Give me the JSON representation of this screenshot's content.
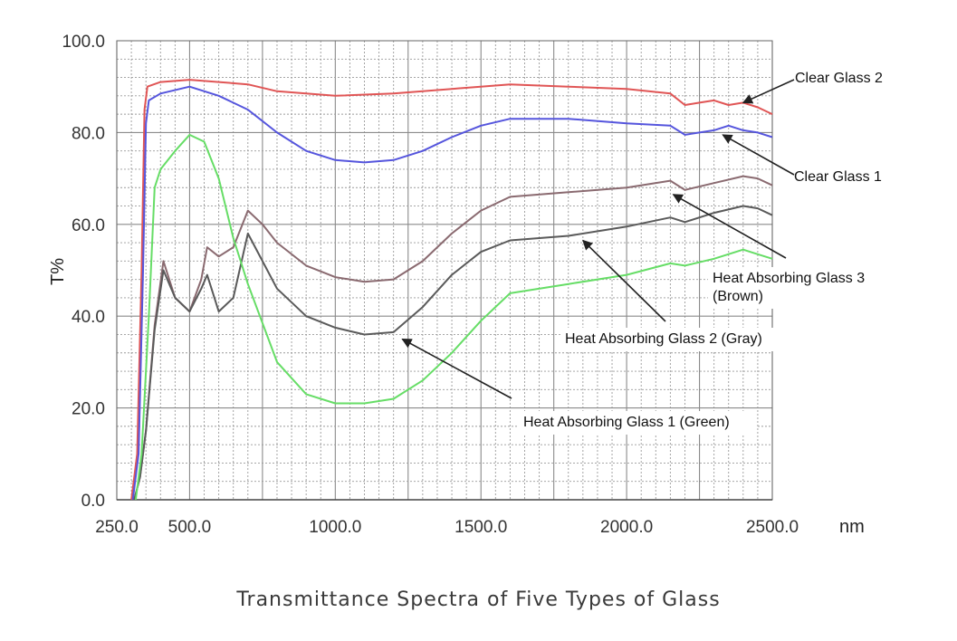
{
  "caption": "Transmittance Spectra of Five Types of Glass",
  "chart_data": {
    "type": "line",
    "title": "",
    "xlabel": "nm",
    "ylabel": "T%",
    "xlim": [
      250,
      2500
    ],
    "ylim": [
      0,
      100
    ],
    "grid": true,
    "x_ticks": [
      250,
      500,
      1000,
      1500,
      2000,
      2500
    ],
    "x_tick_labels": [
      "250.0",
      "500.0",
      "1000.0",
      "1500.0",
      "2000.0",
      "2500.0"
    ],
    "y_ticks": [
      0,
      20,
      40,
      60,
      80,
      100
    ],
    "y_tick_labels": [
      "0.0",
      "20.0",
      "40.0",
      "60.0",
      "80.0",
      "100.0"
    ],
    "series": [
      {
        "name": "Clear Glass 2",
        "color": "#e05555",
        "points": [
          [
            300,
            0
          ],
          [
            320,
            10
          ],
          [
            335,
            50
          ],
          [
            345,
            85
          ],
          [
            355,
            90
          ],
          [
            400,
            91
          ],
          [
            500,
            91.5
          ],
          [
            600,
            91
          ],
          [
            700,
            90.5
          ],
          [
            800,
            89
          ],
          [
            1000,
            88
          ],
          [
            1200,
            88.5
          ],
          [
            1400,
            89.5
          ],
          [
            1600,
            90.5
          ],
          [
            1800,
            90
          ],
          [
            2000,
            89.5
          ],
          [
            2150,
            88.5
          ],
          [
            2200,
            86
          ],
          [
            2250,
            86.5
          ],
          [
            2300,
            87
          ],
          [
            2350,
            86
          ],
          [
            2400,
            86.5
          ],
          [
            2450,
            85.5
          ],
          [
            2500,
            84
          ]
        ]
      },
      {
        "name": "Clear Glass 1",
        "color": "#5555dd",
        "points": [
          [
            305,
            0
          ],
          [
            325,
            10
          ],
          [
            340,
            50
          ],
          [
            350,
            82
          ],
          [
            360,
            87
          ],
          [
            400,
            88.5
          ],
          [
            500,
            90
          ],
          [
            600,
            88
          ],
          [
            700,
            85
          ],
          [
            800,
            80
          ],
          [
            900,
            76
          ],
          [
            1000,
            74
          ],
          [
            1100,
            73.5
          ],
          [
            1200,
            74
          ],
          [
            1300,
            76
          ],
          [
            1400,
            79
          ],
          [
            1500,
            81.5
          ],
          [
            1600,
            83
          ],
          [
            1800,
            83
          ],
          [
            2000,
            82
          ],
          [
            2150,
            81.5
          ],
          [
            2200,
            79.5
          ],
          [
            2300,
            80.5
          ],
          [
            2350,
            81.5
          ],
          [
            2400,
            80.5
          ],
          [
            2450,
            80
          ],
          [
            2500,
            79
          ]
        ]
      },
      {
        "name": "Heat Absorbing Glass 3 (Brown)",
        "color": "#8a6a70",
        "points": [
          [
            310,
            0
          ],
          [
            330,
            5
          ],
          [
            350,
            15
          ],
          [
            380,
            38
          ],
          [
            410,
            52
          ],
          [
            450,
            44
          ],
          [
            500,
            41
          ],
          [
            540,
            48
          ],
          [
            560,
            55
          ],
          [
            600,
            53
          ],
          [
            650,
            55
          ],
          [
            700,
            63
          ],
          [
            750,
            60
          ],
          [
            800,
            56
          ],
          [
            900,
            51
          ],
          [
            1000,
            48.5
          ],
          [
            1100,
            47.5
          ],
          [
            1200,
            48
          ],
          [
            1300,
            52
          ],
          [
            1400,
            58
          ],
          [
            1500,
            63
          ],
          [
            1600,
            66
          ],
          [
            1800,
            67
          ],
          [
            2000,
            68
          ],
          [
            2150,
            69.5
          ],
          [
            2200,
            67.5
          ],
          [
            2300,
            69
          ],
          [
            2400,
            70.5
          ],
          [
            2450,
            70
          ],
          [
            2500,
            68.5
          ]
        ]
      },
      {
        "name": "Heat Absorbing Glass 2 (Gray)",
        "color": "#5a5a5a",
        "points": [
          [
            310,
            0
          ],
          [
            330,
            5
          ],
          [
            350,
            15
          ],
          [
            380,
            37
          ],
          [
            410,
            50
          ],
          [
            450,
            44
          ],
          [
            500,
            41
          ],
          [
            540,
            46
          ],
          [
            560,
            49
          ],
          [
            600,
            41
          ],
          [
            650,
            44
          ],
          [
            700,
            58
          ],
          [
            750,
            52
          ],
          [
            800,
            46
          ],
          [
            900,
            40
          ],
          [
            1000,
            37.5
          ],
          [
            1100,
            36
          ],
          [
            1200,
            36.5
          ],
          [
            1300,
            42
          ],
          [
            1400,
            49
          ],
          [
            1500,
            54
          ],
          [
            1600,
            56.5
          ],
          [
            1800,
            57.5
          ],
          [
            2000,
            59.5
          ],
          [
            2150,
            61.5
          ],
          [
            2200,
            60.5
          ],
          [
            2300,
            62.5
          ],
          [
            2400,
            64
          ],
          [
            2450,
            63.5
          ],
          [
            2500,
            62
          ]
        ]
      },
      {
        "name": "Heat Absorbing Glass 1 (Green)",
        "color": "#66dd66",
        "points": [
          [
            315,
            0
          ],
          [
            335,
            10
          ],
          [
            360,
            40
          ],
          [
            380,
            68
          ],
          [
            400,
            72
          ],
          [
            450,
            76
          ],
          [
            500,
            79.5
          ],
          [
            550,
            78
          ],
          [
            600,
            70
          ],
          [
            650,
            57
          ],
          [
            700,
            47
          ],
          [
            800,
            30
          ],
          [
            900,
            23
          ],
          [
            1000,
            21
          ],
          [
            1100,
            21
          ],
          [
            1200,
            22
          ],
          [
            1300,
            26
          ],
          [
            1400,
            32
          ],
          [
            1500,
            39
          ],
          [
            1600,
            45
          ],
          [
            1800,
            47
          ],
          [
            2000,
            49
          ],
          [
            2150,
            51.5
          ],
          [
            2200,
            51
          ],
          [
            2300,
            52.5
          ],
          [
            2400,
            54.5
          ],
          [
            2450,
            53.5
          ],
          [
            2500,
            52.5
          ]
        ]
      }
    ],
    "annotations": [
      {
        "lines": [
          "Clear Glass 2"
        ],
        "target": [
          2400,
          86.5
        ]
      },
      {
        "lines": [
          "Clear Glass 1"
        ],
        "target": [
          2330,
          79.5
        ]
      },
      {
        "lines": [
          "Heat Absorbing Glass 3",
          "(Brown)"
        ],
        "target": [
          2160,
          66.5
        ]
      },
      {
        "lines": [
          "Heat Absorbing Glass 2 (Gray)"
        ],
        "target": [
          1850,
          56.5
        ]
      },
      {
        "lines": [
          "Heat Absorbing Glass 1 (Green)"
        ],
        "target": [
          1230,
          35
        ]
      }
    ]
  }
}
